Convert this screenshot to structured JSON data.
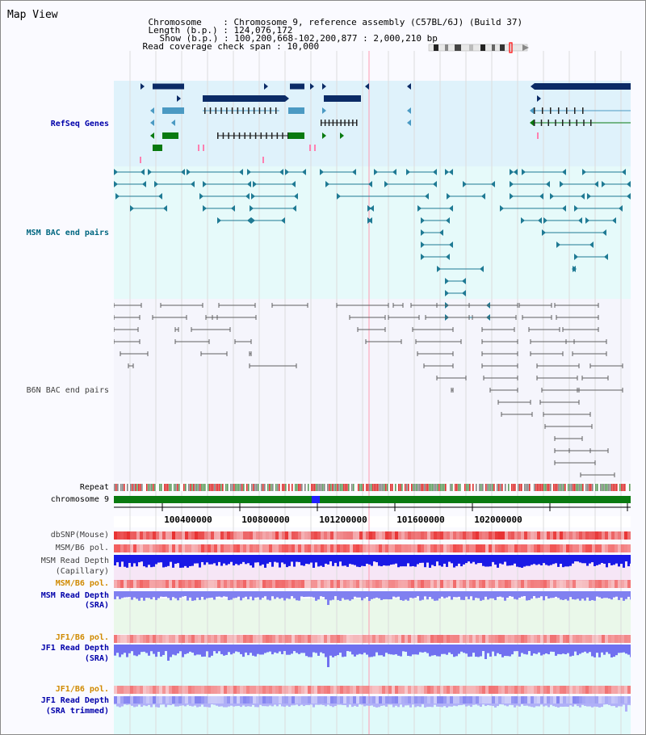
{
  "view_title": "Map View",
  "info": {
    "chromosome_label": "Chromosome",
    "chromosome_value": "Chromosome 9, reference assembly (C57BL/6J) (Build 37)",
    "length_label": "Length (b.p.)",
    "length_value": "124,076,172",
    "show_label": "Show (b.p.)",
    "show_value": "100,200,668-102,200,877 : 2,000,210 bp",
    "coverage_label": "Read coverage check span",
    "coverage_value": "10,000"
  },
  "tracks": {
    "refseq": "RefSeq Genes",
    "msm_bac": "MSM BAC end pairs",
    "b6n_bac": "B6N BAC end pairs",
    "repeat": "Repeat",
    "chromosome": "chromosome 9",
    "dbsnp": "dbSNP(Mouse)",
    "msm_b6_pol": "MSM/B6 pol.",
    "msm_depth_cap_1": "MSM Read Depth",
    "msm_depth_cap_2": "(Capillary)",
    "msm_b6_pol_2": "MSM/B6 pol.",
    "msm_depth_sra_1": "MSM Read Depth",
    "msm_depth_sra_2": "(SRA)",
    "jf1_b6_pol": "JF1/B6 pol.",
    "jf1_depth_sra_1": "JF1 Read Depth",
    "jf1_depth_sra_2": "(SRA)",
    "jf1_b6_pol_2": "JF1/B6 pol.",
    "jf1_depth_trim_1": "JF1 Read Depth",
    "jf1_depth_trim_2": "(SRA trimmed)"
  },
  "axis": {
    "ticks": [
      "100400000",
      "100800000",
      "101200000",
      "101600000",
      "102000000"
    ]
  },
  "colors": {
    "refseq_bg": "#dff2fb",
    "msm_bg": "#e6fafa",
    "b6n_bg": "#f5f5fc",
    "gene_dark": "#0b2b66",
    "gene_light": "#4b9ac3",
    "gene_green": "#0a7a10",
    "msm_line": "#1f7a94",
    "b6n_line": "#606060",
    "depth_blue": "#1a1ae6",
    "depth_lavender": "#8080f0",
    "pol_red": "#f05a5a",
    "chrom_green": "#0a7a10"
  }
}
